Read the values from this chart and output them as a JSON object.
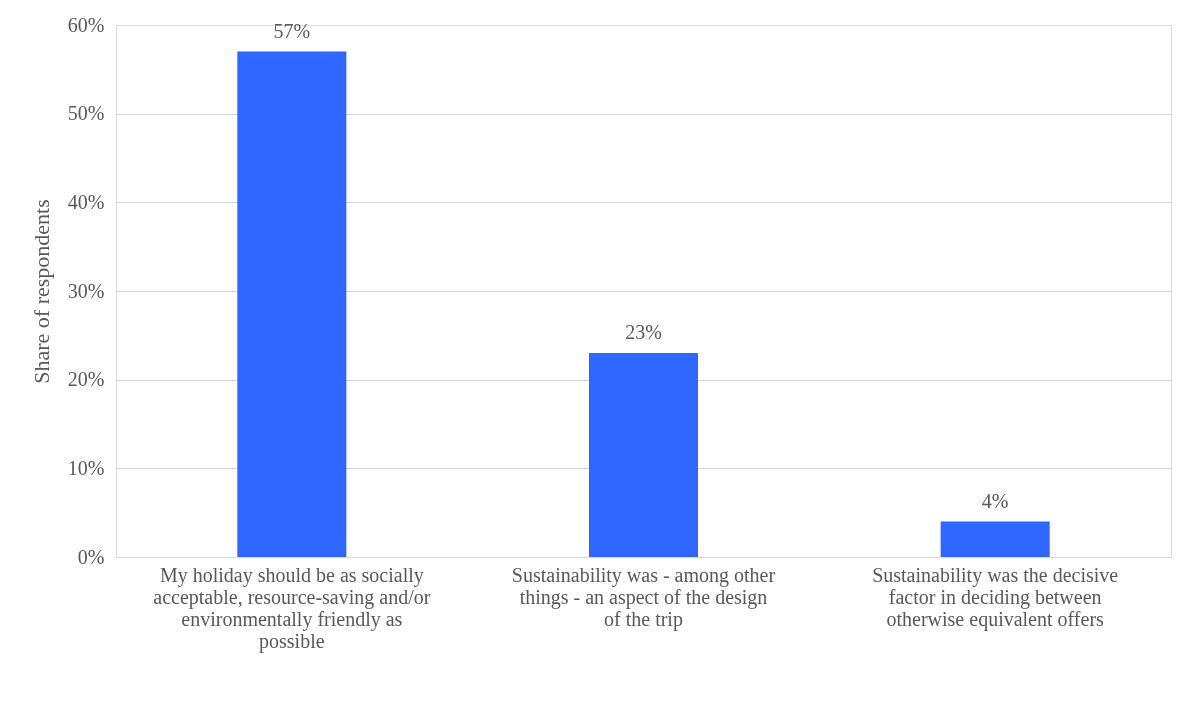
{
  "chart_data": {
    "type": "bar",
    "ylabel": "Share of respondents",
    "categories": [
      "My holiday should be as socially acceptable, resource-saving and/or environmentally friendly as possible",
      "Sustainability was - among other things - an aspect of the design of the trip",
      "Sustainability was the decisive factor in deciding between otherwise equivalent offers"
    ],
    "values": [
      57,
      23,
      4
    ],
    "value_labels": [
      "57%",
      "23%",
      "4%"
    ],
    "color": "#2e66ff",
    "ylim": [
      0,
      60
    ],
    "yticks": [
      {
        "value": 0,
        "label": "0%"
      },
      {
        "value": 10,
        "label": "10%"
      },
      {
        "value": 20,
        "label": "20%"
      },
      {
        "value": 30,
        "label": "30%"
      },
      {
        "value": 40,
        "label": "40%"
      },
      {
        "value": 50,
        "label": "50%"
      },
      {
        "value": 60,
        "label": "60%"
      }
    ],
    "grid": "y"
  }
}
